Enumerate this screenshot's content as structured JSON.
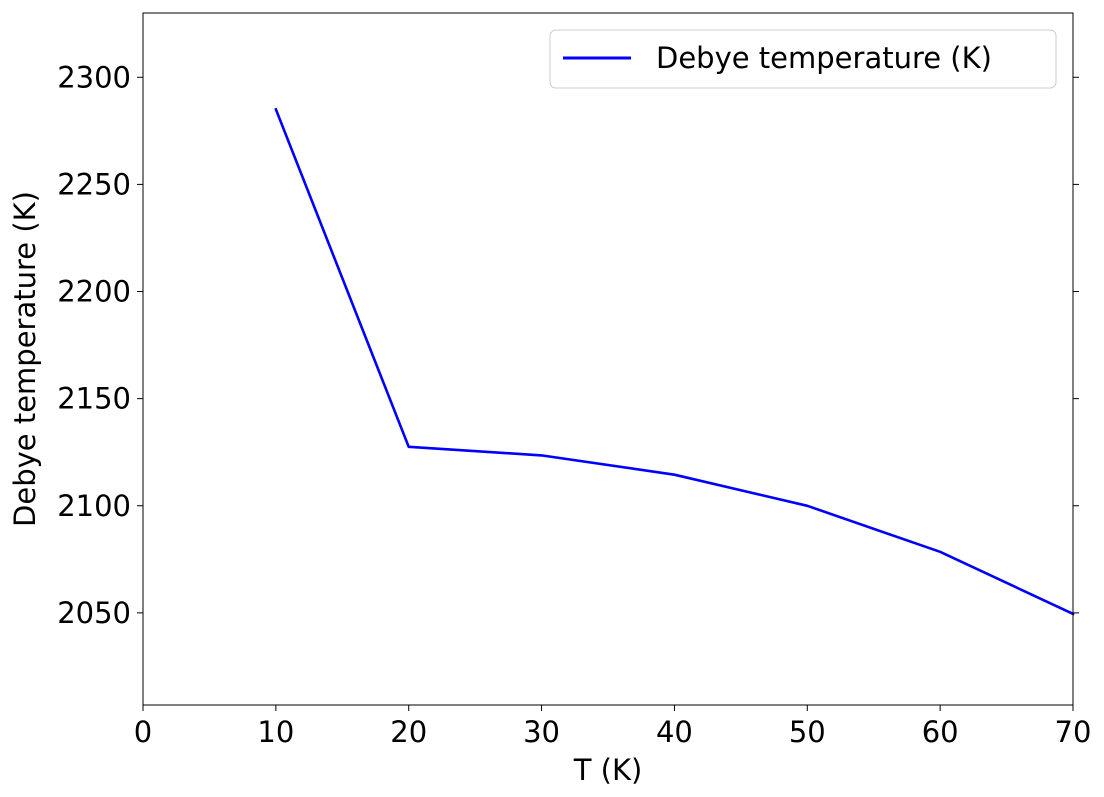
{
  "chart_data": {
    "type": "line",
    "title": "",
    "xlabel": "T (K)",
    "ylabel": "Debye temperature (K)",
    "xlim": [
      0,
      70
    ],
    "ylim": [
      2007,
      2330
    ],
    "xticks": [
      0,
      10,
      20,
      30,
      40,
      50,
      60,
      70
    ],
    "yticks": [
      2050,
      2100,
      2150,
      2200,
      2250,
      2300
    ],
    "grid": false,
    "legend_position": "upper right",
    "series": [
      {
        "name": "Debye temperature (K)",
        "color": "#0000ff",
        "x": [
          10,
          20,
          30,
          40,
          50,
          60,
          70
        ],
        "y": [
          2285,
          2127.5,
          2123.5,
          2114.5,
          2100,
          2078.5,
          2049.5
        ]
      }
    ]
  }
}
